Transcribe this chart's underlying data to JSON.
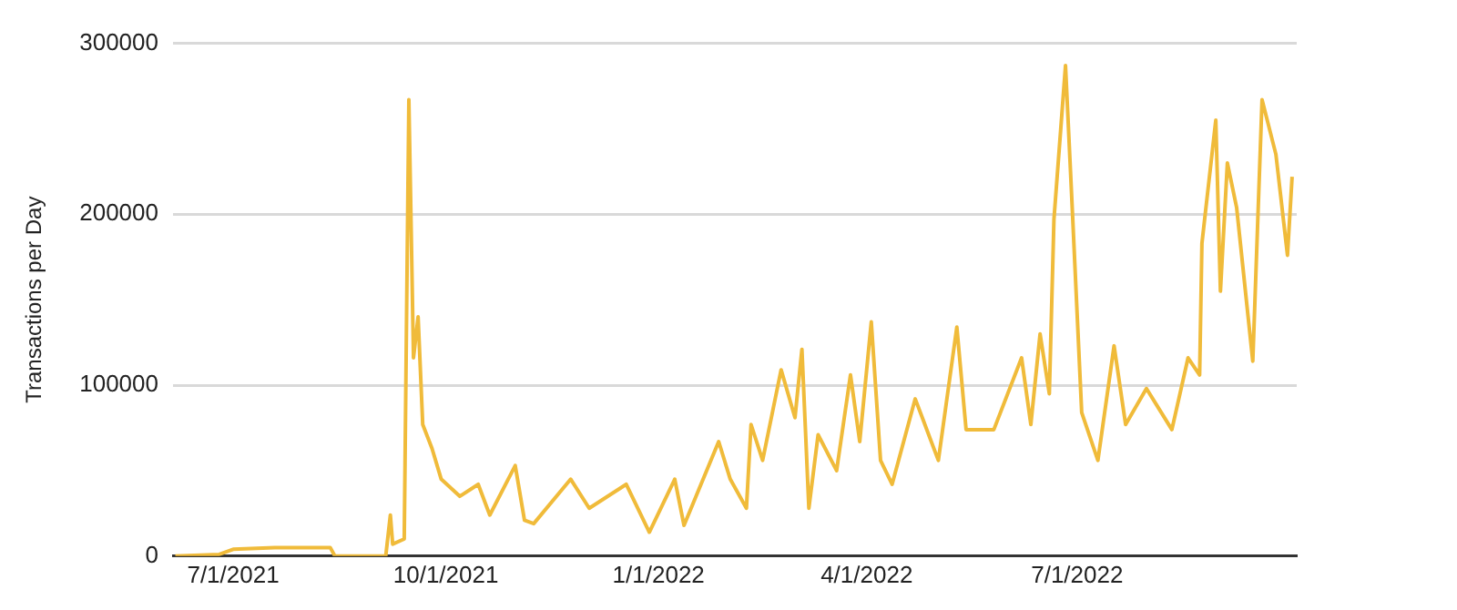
{
  "chart_data": {
    "type": "line",
    "ylabel": "Transactions per Day",
    "x": [
      "2021-06-06",
      "2021-06-25",
      "2021-07-01",
      "2021-07-19",
      "2021-08-12",
      "2021-08-14",
      "2021-09-05",
      "2021-09-07",
      "2021-09-08",
      "2021-09-13",
      "2021-09-15",
      "2021-09-17",
      "2021-09-19",
      "2021-09-21",
      "2021-09-25",
      "2021-09-29",
      "2021-10-07",
      "2021-10-15",
      "2021-10-20",
      "2021-10-31",
      "2021-11-04",
      "2021-11-08",
      "2021-11-24",
      "2021-12-02",
      "2021-12-18",
      "2021-12-28",
      "2022-01-08",
      "2022-01-12",
      "2022-01-27",
      "2022-02-01",
      "2022-02-08",
      "2022-02-10",
      "2022-02-15",
      "2022-02-23",
      "2022-03-01",
      "2022-03-04",
      "2022-03-07",
      "2022-03-11",
      "2022-03-19",
      "2022-03-25",
      "2022-03-29",
      "2022-04-03",
      "2022-04-07",
      "2022-04-12",
      "2022-04-22",
      "2022-05-02",
      "2022-05-10",
      "2022-05-14",
      "2022-05-26",
      "2022-06-07",
      "2022-06-11",
      "2022-06-15",
      "2022-06-19",
      "2022-06-21",
      "2022-06-26",
      "2022-06-29",
      "2022-07-03",
      "2022-07-10",
      "2022-07-17",
      "2022-07-22",
      "2022-07-31",
      "2022-08-11",
      "2022-08-18",
      "2022-08-23",
      "2022-08-24",
      "2022-08-30",
      "2022-09-01",
      "2022-09-04",
      "2022-09-08",
      "2022-09-15",
      "2022-09-19",
      "2022-09-25",
      "2022-09-30",
      "2022-10-02"
    ],
    "series": [
      {
        "color": "#f0bb3a",
        "values": [
          0,
          1000,
          4000,
          5000,
          5000,
          0,
          0,
          24000,
          7000,
          10000,
          267000,
          116000,
          140000,
          77000,
          63000,
          45000,
          35000,
          42000,
          24000,
          53000,
          21000,
          19000,
          45000,
          28000,
          42000,
          14000,
          45000,
          18000,
          67000,
          45000,
          28000,
          77000,
          56000,
          109000,
          81000,
          121000,
          28000,
          71000,
          50000,
          106000,
          67000,
          137000,
          56000,
          42000,
          92000,
          56000,
          134000,
          74000,
          74000,
          116000,
          77000,
          130000,
          95000,
          197000,
          287000,
          201000,
          84000,
          56000,
          123000,
          77000,
          98000,
          74000,
          116000,
          106000,
          183000,
          255000,
          155000,
          230000,
          204000,
          114000,
          267000,
          235000,
          176000,
          222000
        ]
      }
    ],
    "xlim": [
      "2021-06-05",
      "2022-10-04"
    ],
    "xticks": [
      {
        "value": "2021-07-01",
        "label": "7/1/2021"
      },
      {
        "value": "2021-10-01",
        "label": "10/1/2021"
      },
      {
        "value": "2022-01-01",
        "label": "1/1/2022"
      },
      {
        "value": "2022-04-01",
        "label": "4/1/2022"
      },
      {
        "value": "2022-07-01",
        "label": "7/1/2022"
      }
    ],
    "ylim": [
      0,
      300000
    ],
    "yticks": [
      0,
      100000,
      200000,
      300000
    ],
    "grid": "y",
    "legend": false,
    "marker": "none",
    "line_style": "solid"
  }
}
